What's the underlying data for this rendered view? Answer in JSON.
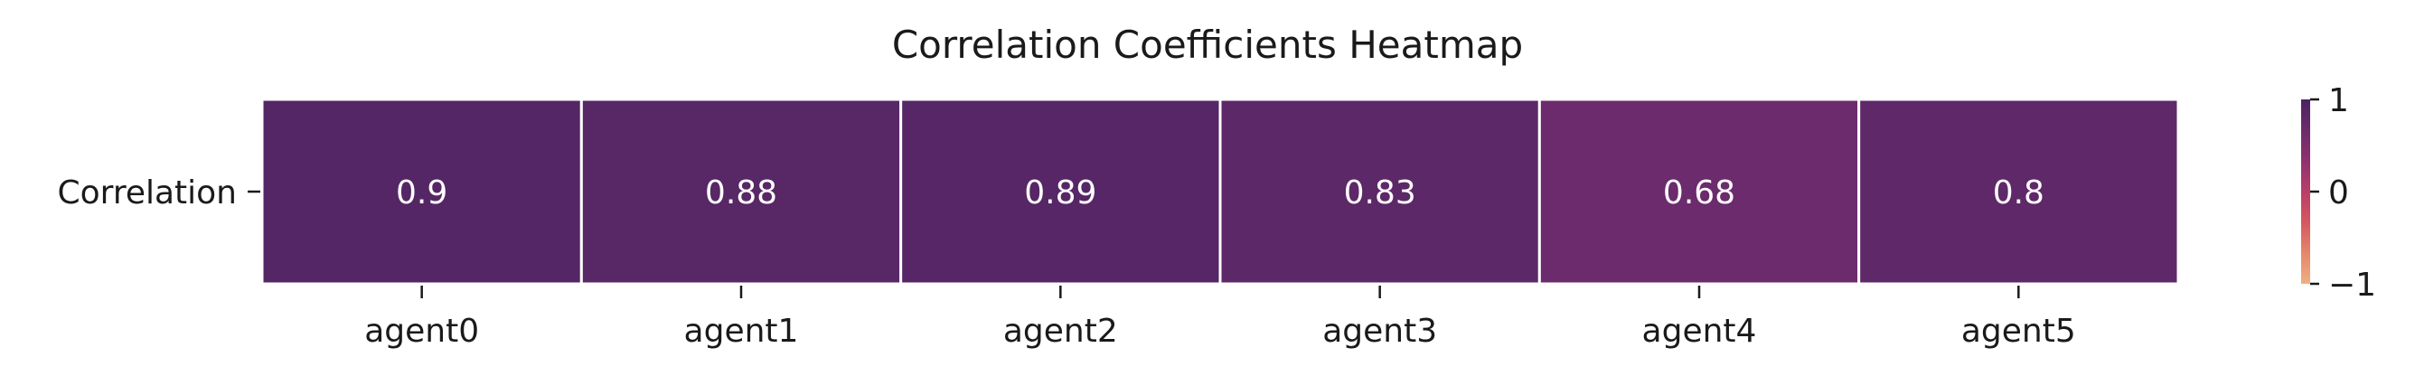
{
  "chart_data": {
    "type": "heatmap",
    "title": "Correlation Coefficients Heatmap",
    "row_labels": [
      "Correlation"
    ],
    "col_labels": [
      "agent0",
      "agent1",
      "agent2",
      "agent3",
      "agent4",
      "agent5"
    ],
    "values": [
      [
        0.9,
        0.88,
        0.89,
        0.83,
        0.68,
        0.8
      ]
    ],
    "value_labels": [
      [
        "0.9",
        "0.88",
        "0.89",
        "0.83",
        "0.68",
        "0.8"
      ]
    ],
    "colorbar": {
      "range": [
        -1,
        1
      ],
      "ticks": [
        1,
        0,
        -1
      ],
      "tick_labels": [
        "1",
        "0",
        "−1"
      ],
      "colormap_stops": [
        "#edb081",
        "#e5866c",
        "#d6575f",
        "#b93e6a",
        "#8e3270",
        "#6c2b6d",
        "#4b2462"
      ]
    }
  }
}
